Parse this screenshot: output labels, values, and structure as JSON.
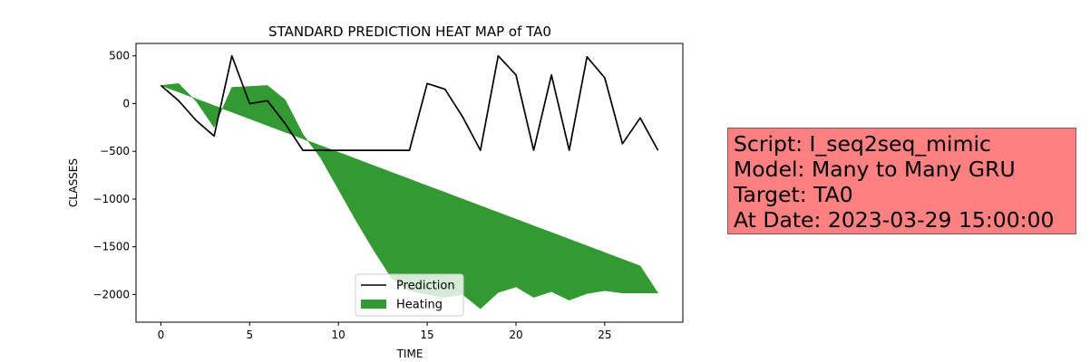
{
  "chart_data": {
    "type": "line",
    "title": "STANDARD PREDICTION HEAT MAP of TA0",
    "xlabel": "TIME",
    "ylabel": "CLASSES",
    "xlim": [
      -1.4,
      29.4
    ],
    "ylim": [
      -2290,
      630
    ],
    "x_ticks": [
      0,
      5,
      10,
      15,
      20,
      25
    ],
    "y_ticks": [
      500,
      0,
      -500,
      -1000,
      -1500,
      -2000
    ],
    "legend_position": "lower-center",
    "series": [
      {
        "name": "Prediction",
        "kind": "line",
        "color": "#000000",
        "x": [
          0,
          1,
          2,
          3,
          4,
          5,
          6,
          7,
          8,
          9,
          10,
          11,
          12,
          13,
          14,
          15,
          16,
          17,
          18,
          19,
          20,
          21,
          22,
          23,
          24,
          25,
          26,
          27,
          28
        ],
        "y": [
          190,
          30,
          -180,
          -340,
          500,
          0,
          30,
          -210,
          -490,
          -490,
          -490,
          -490,
          -490,
          -490,
          -490,
          210,
          150,
          -140,
          -490,
          500,
          300,
          -490,
          300,
          -490,
          490,
          270,
          -420,
          -150,
          -490
        ]
      },
      {
        "name": "Heating",
        "kind": "fill_between",
        "color": "#339933",
        "x": [
          0,
          1,
          2,
          3,
          4,
          5,
          6,
          7,
          8,
          9,
          10,
          11,
          12,
          13,
          14,
          15,
          16,
          17,
          18,
          19,
          20,
          21,
          22,
          23,
          24,
          25,
          26,
          27,
          28
        ],
        "y_upper": [
          190,
          210,
          20,
          -250,
          170,
          180,
          190,
          40,
          -320,
          -570,
          -900,
          -1230,
          -1540,
          -1830,
          -1960,
          -2000,
          -2030,
          -2000,
          -2150,
          -1980,
          -1920,
          -2030,
          -1970,
          -2060,
          -1990,
          -1960,
          -1985,
          -1985,
          -1985
        ],
        "y_lower": [
          190,
          120,
          50,
          -20,
          -90,
          -160,
          -230,
          -300,
          -370,
          -440,
          -510,
          -580,
          -650,
          -720,
          -790,
          -860,
          -930,
          -1000,
          -1070,
          -1140,
          -1210,
          -1280,
          -1350,
          -1420,
          -1490,
          -1560,
          -1630,
          -1700,
          -1985
        ]
      }
    ]
  },
  "legend": {
    "prediction_label": "Prediction",
    "heating_label": "Heating"
  },
  "info": {
    "script_line": "Script: I_seq2seq_mimic",
    "model_line": "Model: Many to Many GRU",
    "target_line": "Target: TA0",
    "date_line": "At Date: 2023-03-29 15:00:00"
  }
}
